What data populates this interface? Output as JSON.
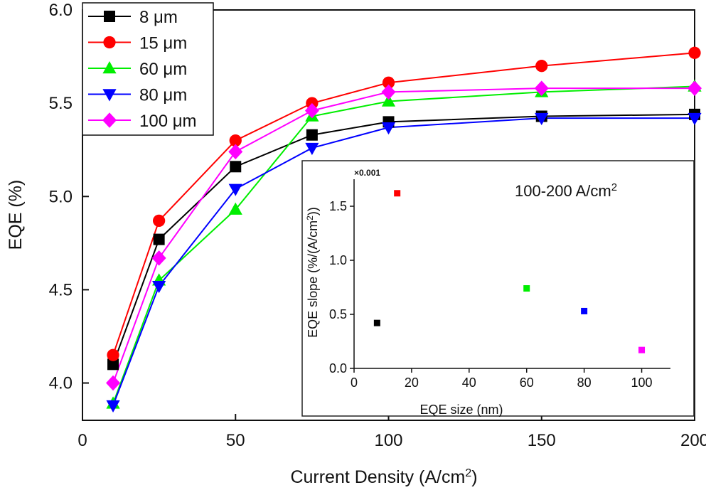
{
  "chart_data": [
    {
      "type": "line",
      "ylabel": "EQE (%)",
      "xlabel_main": "Current Density (A/cm",
      "xlabel_sup": "2",
      "xlabel_tail": ")",
      "xlim": [
        0,
        200
      ],
      "ylim": [
        3.8,
        6.0
      ],
      "xticks": [
        0,
        50,
        100,
        150,
        200
      ],
      "yticks": [
        4.0,
        4.5,
        5.0,
        5.5,
        6.0
      ],
      "ytick_labels": [
        "4.0",
        "4.5",
        "5.0",
        "5.5",
        "6.0"
      ],
      "x": [
        10,
        25,
        50,
        75,
        100,
        150,
        200
      ],
      "legend_position": "top-left",
      "series": [
        {
          "name": "8 μm",
          "color": "#000000",
          "marker": "square",
          "values": [
            4.1,
            4.77,
            5.16,
            5.33,
            5.4,
            5.43,
            5.44
          ]
        },
        {
          "name": "15 μm",
          "color": "#ff0000",
          "marker": "circle",
          "values": [
            4.15,
            4.87,
            5.3,
            5.5,
            5.61,
            5.7,
            5.77
          ]
        },
        {
          "name": "60 μm",
          "color": "#00ee00",
          "marker": "triangle-up",
          "values": [
            3.89,
            4.55,
            4.93,
            5.43,
            5.51,
            5.56,
            5.59
          ]
        },
        {
          "name": "80 μm",
          "color": "#0000ff",
          "marker": "triangle-down",
          "values": [
            3.88,
            4.52,
            5.04,
            5.26,
            5.37,
            5.42,
            5.42
          ]
        },
        {
          "name": "100 μm",
          "color": "#ff00ff",
          "marker": "diamond",
          "values": [
            4.0,
            4.67,
            5.24,
            5.46,
            5.56,
            5.58,
            5.58
          ]
        }
      ]
    },
    {
      "type": "scatter",
      "title_main": "100-200 A/cm",
      "title_sup": "2",
      "ylabel_main": "EQE slope (%/(A/cm",
      "ylabel_sup": "2",
      "ylabel_tail": "))",
      "xlabel": "EQE size (nm)",
      "scale_note": "×0.001",
      "xlim": [
        0,
        110
      ],
      "ylim": [
        0,
        1.75
      ],
      "xticks": [
        0,
        20,
        40,
        60,
        80,
        100
      ],
      "yticks": [
        0.0,
        0.5,
        1.0,
        1.5
      ],
      "ytick_labels": [
        "0.0",
        "0.5",
        "1.0",
        "1.5"
      ],
      "points": [
        {
          "x": 8,
          "y": 0.42,
          "color": "#000000"
        },
        {
          "x": 15,
          "y": 1.62,
          "color": "#ff0000"
        },
        {
          "x": 60,
          "y": 0.74,
          "color": "#00ee00"
        },
        {
          "x": 80,
          "y": 0.53,
          "color": "#0000ff"
        },
        {
          "x": 100,
          "y": 0.17,
          "color": "#ff00ff"
        }
      ]
    }
  ]
}
